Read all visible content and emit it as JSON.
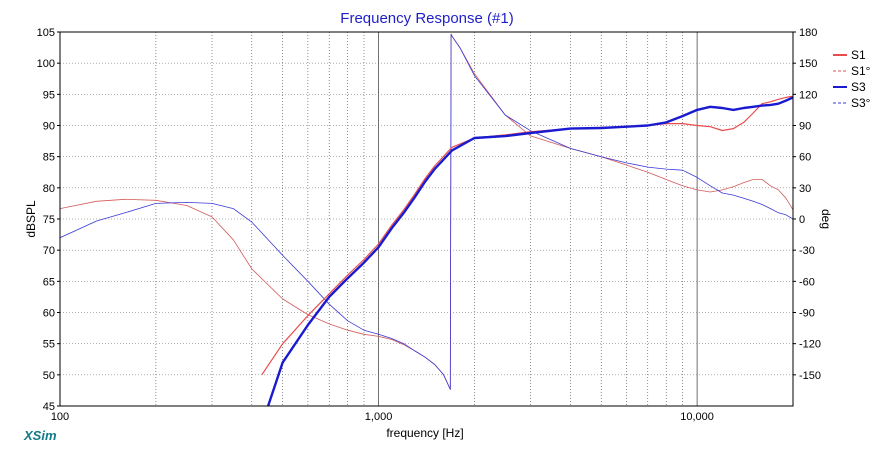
{
  "chart_data": {
    "type": "line",
    "title": "Frequency Response (#1)",
    "xlabel": "frequency [Hz]",
    "ylabel": "dBSPL",
    "y2label": "deg",
    "xscale": "log",
    "xlim": [
      100,
      20000
    ],
    "ylim": [
      45,
      105
    ],
    "y2lim": [
      -180,
      180
    ],
    "xticks": [
      {
        "v": 100,
        "label": "100"
      },
      {
        "v": 1000,
        "label": "1,000"
      },
      {
        "v": 10000,
        "label": "10,000"
      }
    ],
    "yticks": [
      45,
      50,
      55,
      60,
      65,
      70,
      75,
      80,
      85,
      90,
      95,
      100,
      105
    ],
    "y2ticks": [
      {
        "v": -150,
        "label": "-150"
      },
      {
        "v": -120,
        "label": "-120"
      },
      {
        "v": -90,
        "label": "-90"
      },
      {
        "v": -60,
        "label": "-60"
      },
      {
        "v": -30,
        "label": "-30"
      },
      {
        "v": 0,
        "label": "0"
      },
      {
        "v": 30,
        "label": "30"
      },
      {
        "v": 60,
        "label": "60"
      },
      {
        "v": 90,
        "label": "90"
      },
      {
        "v": 120,
        "label": "120"
      },
      {
        "v": 150,
        "label": "150"
      },
      {
        "v": 180,
        "label": "180"
      }
    ],
    "grid": true,
    "legend": "right",
    "brand": "XSim",
    "series": [
      {
        "name": "S1",
        "axis": "left",
        "color": "#e84c4c",
        "width": 1.2,
        "dash": "",
        "x": [
          430,
          500,
          600,
          700,
          800,
          900,
          1000,
          1100,
          1200,
          1300,
          1400,
          1500,
          1700,
          2000,
          2500,
          3000,
          4000,
          5000,
          6000,
          7000,
          8000,
          9000,
          10000,
          11000,
          12000,
          13000,
          14000,
          15000,
          16000,
          17000,
          18000,
          19000,
          20000
        ],
        "y": [
          50,
          55,
          59.5,
          63,
          66,
          68.5,
          71,
          74,
          76.5,
          79,
          81.5,
          83.5,
          86.5,
          88,
          88.5,
          89,
          89.5,
          89.7,
          89.8,
          90,
          90.3,
          90.3,
          90,
          89.8,
          89.2,
          89.5,
          90.5,
          92,
          93.5,
          93.8,
          94.2,
          94.5,
          94.7
        ]
      },
      {
        "name": "S1°",
        "axis": "right",
        "color": "#d35a5a",
        "width": 0.8,
        "dash": "",
        "x": [
          100,
          130,
          160,
          200,
          250,
          300,
          350,
          400,
          500,
          600,
          700,
          800,
          900,
          1000,
          1100,
          1200,
          1300,
          1400,
          1500,
          1600,
          1680,
          1690,
          1700,
          1800,
          2000,
          2500,
          3000,
          4000,
          5000,
          6000,
          7000,
          8000,
          9000,
          10000,
          11000,
          12000,
          13000,
          14000,
          15000,
          16000,
          17000,
          18000,
          19000,
          20000
        ],
        "y": [
          10,
          17,
          19,
          18,
          13,
          2,
          -20,
          -48,
          -77,
          -92,
          -101,
          -107,
          -111,
          -113,
          -116,
          -121,
          -127,
          -133,
          -140,
          -150,
          -164,
          178,
          176,
          165,
          140,
          100,
          80,
          68,
          60,
          52,
          45,
          38,
          32,
          28,
          26,
          28,
          31,
          35,
          38,
          38,
          32,
          28,
          20,
          9
        ]
      },
      {
        "name": "S3",
        "axis": "left",
        "color": "#1a1ad0",
        "width": 2.4,
        "dash": "",
        "x": [
          450,
          500,
          600,
          700,
          800,
          900,
          1000,
          1100,
          1200,
          1300,
          1400,
          1500,
          1700,
          2000,
          2500,
          3000,
          4000,
          5000,
          6000,
          7000,
          8000,
          9000,
          10000,
          11000,
          12000,
          13000,
          14000,
          15000,
          16000,
          17000,
          18000,
          19000,
          20000
        ],
        "y": [
          45,
          52,
          58,
          62.5,
          65.5,
          68,
          70.5,
          73.5,
          76,
          78.5,
          81,
          83,
          86,
          88,
          88.3,
          88.8,
          89.5,
          89.6,
          89.8,
          90,
          90.5,
          91.5,
          92.5,
          93,
          92.8,
          92.5,
          92.8,
          93,
          93.2,
          93.3,
          93.5,
          94,
          94.5
        ]
      },
      {
        "name": "S3°",
        "axis": "right",
        "color": "#3a3ad8",
        "width": 0.8,
        "dash": "",
        "x": [
          100,
          130,
          160,
          200,
          250,
          300,
          350,
          400,
          500,
          600,
          700,
          800,
          900,
          1000,
          1100,
          1200,
          1300,
          1400,
          1500,
          1600,
          1680,
          1690,
          1700,
          1800,
          2000,
          2500,
          3000,
          4000,
          5000,
          6000,
          7000,
          8000,
          9000,
          10000,
          11000,
          12000,
          13000,
          14000,
          15000,
          16000,
          17000,
          18000,
          19000,
          20000
        ],
        "y": [
          -18,
          -2,
          6,
          15,
          16,
          15,
          10,
          -3,
          -35,
          -60,
          -82,
          -98,
          -107,
          -111,
          -115,
          -120,
          -127,
          -133,
          -140,
          -150,
          -164,
          178,
          176,
          165,
          138,
          100,
          85,
          68,
          60,
          54,
          50,
          48,
          47,
          40,
          32,
          25,
          23,
          20,
          17,
          14,
          10,
          6,
          4,
          0
        ]
      }
    ]
  }
}
